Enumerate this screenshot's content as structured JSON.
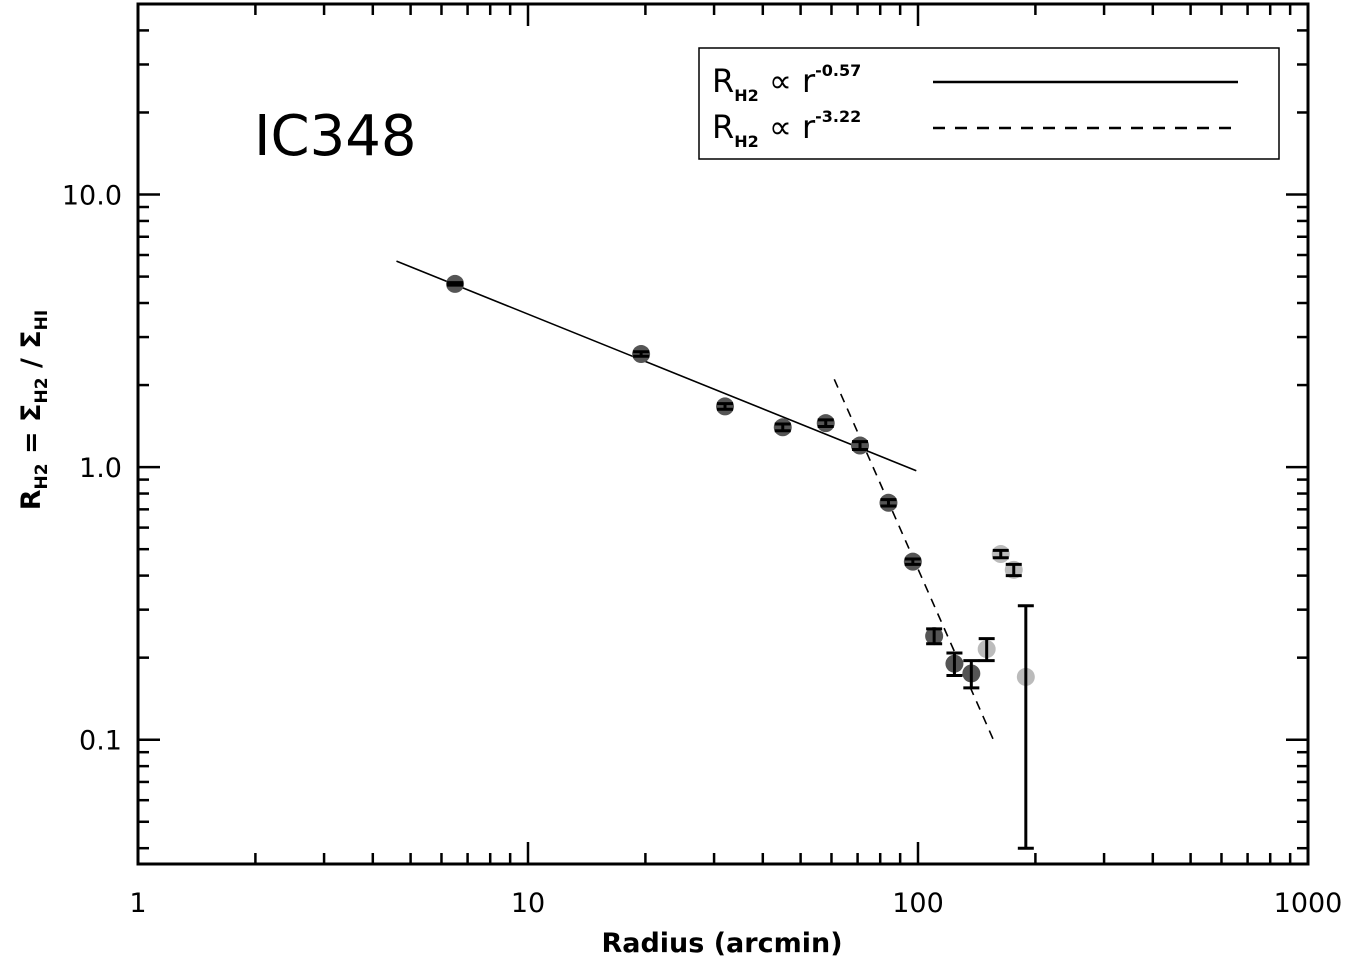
{
  "chart_data": {
    "type": "scatter",
    "title": "",
    "annotation": "IC348",
    "xlabel": "Radius (arcmin)",
    "ylabel": {
      "parts": [
        "R",
        "H2",
        " = Σ",
        "H2",
        " / Σ",
        "HI"
      ]
    },
    "x_scale": "log",
    "y_scale": "log",
    "xlim": [
      1,
      1000
    ],
    "ylim": [
      0.035,
      50
    ],
    "x_ticks": [
      {
        "value": 1,
        "label": "1"
      },
      {
        "value": 10,
        "label": "10"
      },
      {
        "value": 100,
        "label": "100"
      },
      {
        "value": 1000,
        "label": "1000"
      }
    ],
    "y_ticks": [
      {
        "value": 0.1,
        "label": "0.1"
      },
      {
        "value": 1,
        "label": "1.0"
      },
      {
        "value": 10,
        "label": "10.0"
      }
    ],
    "grid": false,
    "legend_position": "top-right",
    "legend": [
      {
        "prefix": "R",
        "sub": "H2",
        "mid": " ∝ r",
        "sup": "-0.57",
        "style": "solid"
      },
      {
        "prefix": "R",
        "sub": "H2",
        "mid": " ∝ r",
        "sup": "-3.22",
        "style": "dashed"
      }
    ],
    "colors": {
      "dark_point": "#555555",
      "light_point": "#bbbbbb",
      "line": "#000000"
    },
    "points": [
      {
        "x": 6.5,
        "y": 4.7,
        "err_lo": 0.05,
        "err_hi": 0.05,
        "shade": "dark"
      },
      {
        "x": 19.5,
        "y": 2.6,
        "err_lo": 0.05,
        "err_hi": 0.05,
        "shade": "dark"
      },
      {
        "x": 32,
        "y": 1.67,
        "err_lo": 0.04,
        "err_hi": 0.04,
        "shade": "dark"
      },
      {
        "x": 45,
        "y": 1.4,
        "err_lo": 0.04,
        "err_hi": 0.04,
        "shade": "dark"
      },
      {
        "x": 58,
        "y": 1.45,
        "err_lo": 0.04,
        "err_hi": 0.04,
        "shade": "dark"
      },
      {
        "x": 71,
        "y": 1.2,
        "err_lo": 0.04,
        "err_hi": 0.04,
        "shade": "dark"
      },
      {
        "x": 84,
        "y": 0.74,
        "err_lo": 0.02,
        "err_hi": 0.02,
        "shade": "dark"
      },
      {
        "x": 97,
        "y": 0.45,
        "err_lo": 0.01,
        "err_hi": 0.01,
        "shade": "dark"
      },
      {
        "x": 110,
        "y": 0.24,
        "err_lo": 0.015,
        "err_hi": 0.015,
        "shade": "dark"
      },
      {
        "x": 124,
        "y": 0.19,
        "err_lo": 0.018,
        "err_hi": 0.018,
        "shade": "dark"
      },
      {
        "x": 137,
        "y": 0.175,
        "err_lo": 0.02,
        "err_hi": 0.02,
        "shade": "dark"
      },
      {
        "x": 150,
        "y": 0.215,
        "err_lo": 0.02,
        "err_hi": 0.02,
        "shade": "light"
      },
      {
        "x": 163,
        "y": 0.48,
        "err_lo": 0.015,
        "err_hi": 0.015,
        "shade": "light"
      },
      {
        "x": 176,
        "y": 0.42,
        "err_lo": 0.02,
        "err_hi": 0.02,
        "shade": "light"
      },
      {
        "x": 189,
        "y": 0.17,
        "err_lo": 0.13,
        "err_hi": 0.14,
        "shade": "light"
      }
    ],
    "fits": [
      {
        "name": "-0.57",
        "style": "solid",
        "x": [
          4.6,
          99
        ],
        "y": [
          5.7,
          0.97
        ]
      },
      {
        "name": "-3.22",
        "style": "dashed",
        "x": [
          61,
          157
        ],
        "y": [
          2.1,
          0.098
        ]
      }
    ]
  }
}
